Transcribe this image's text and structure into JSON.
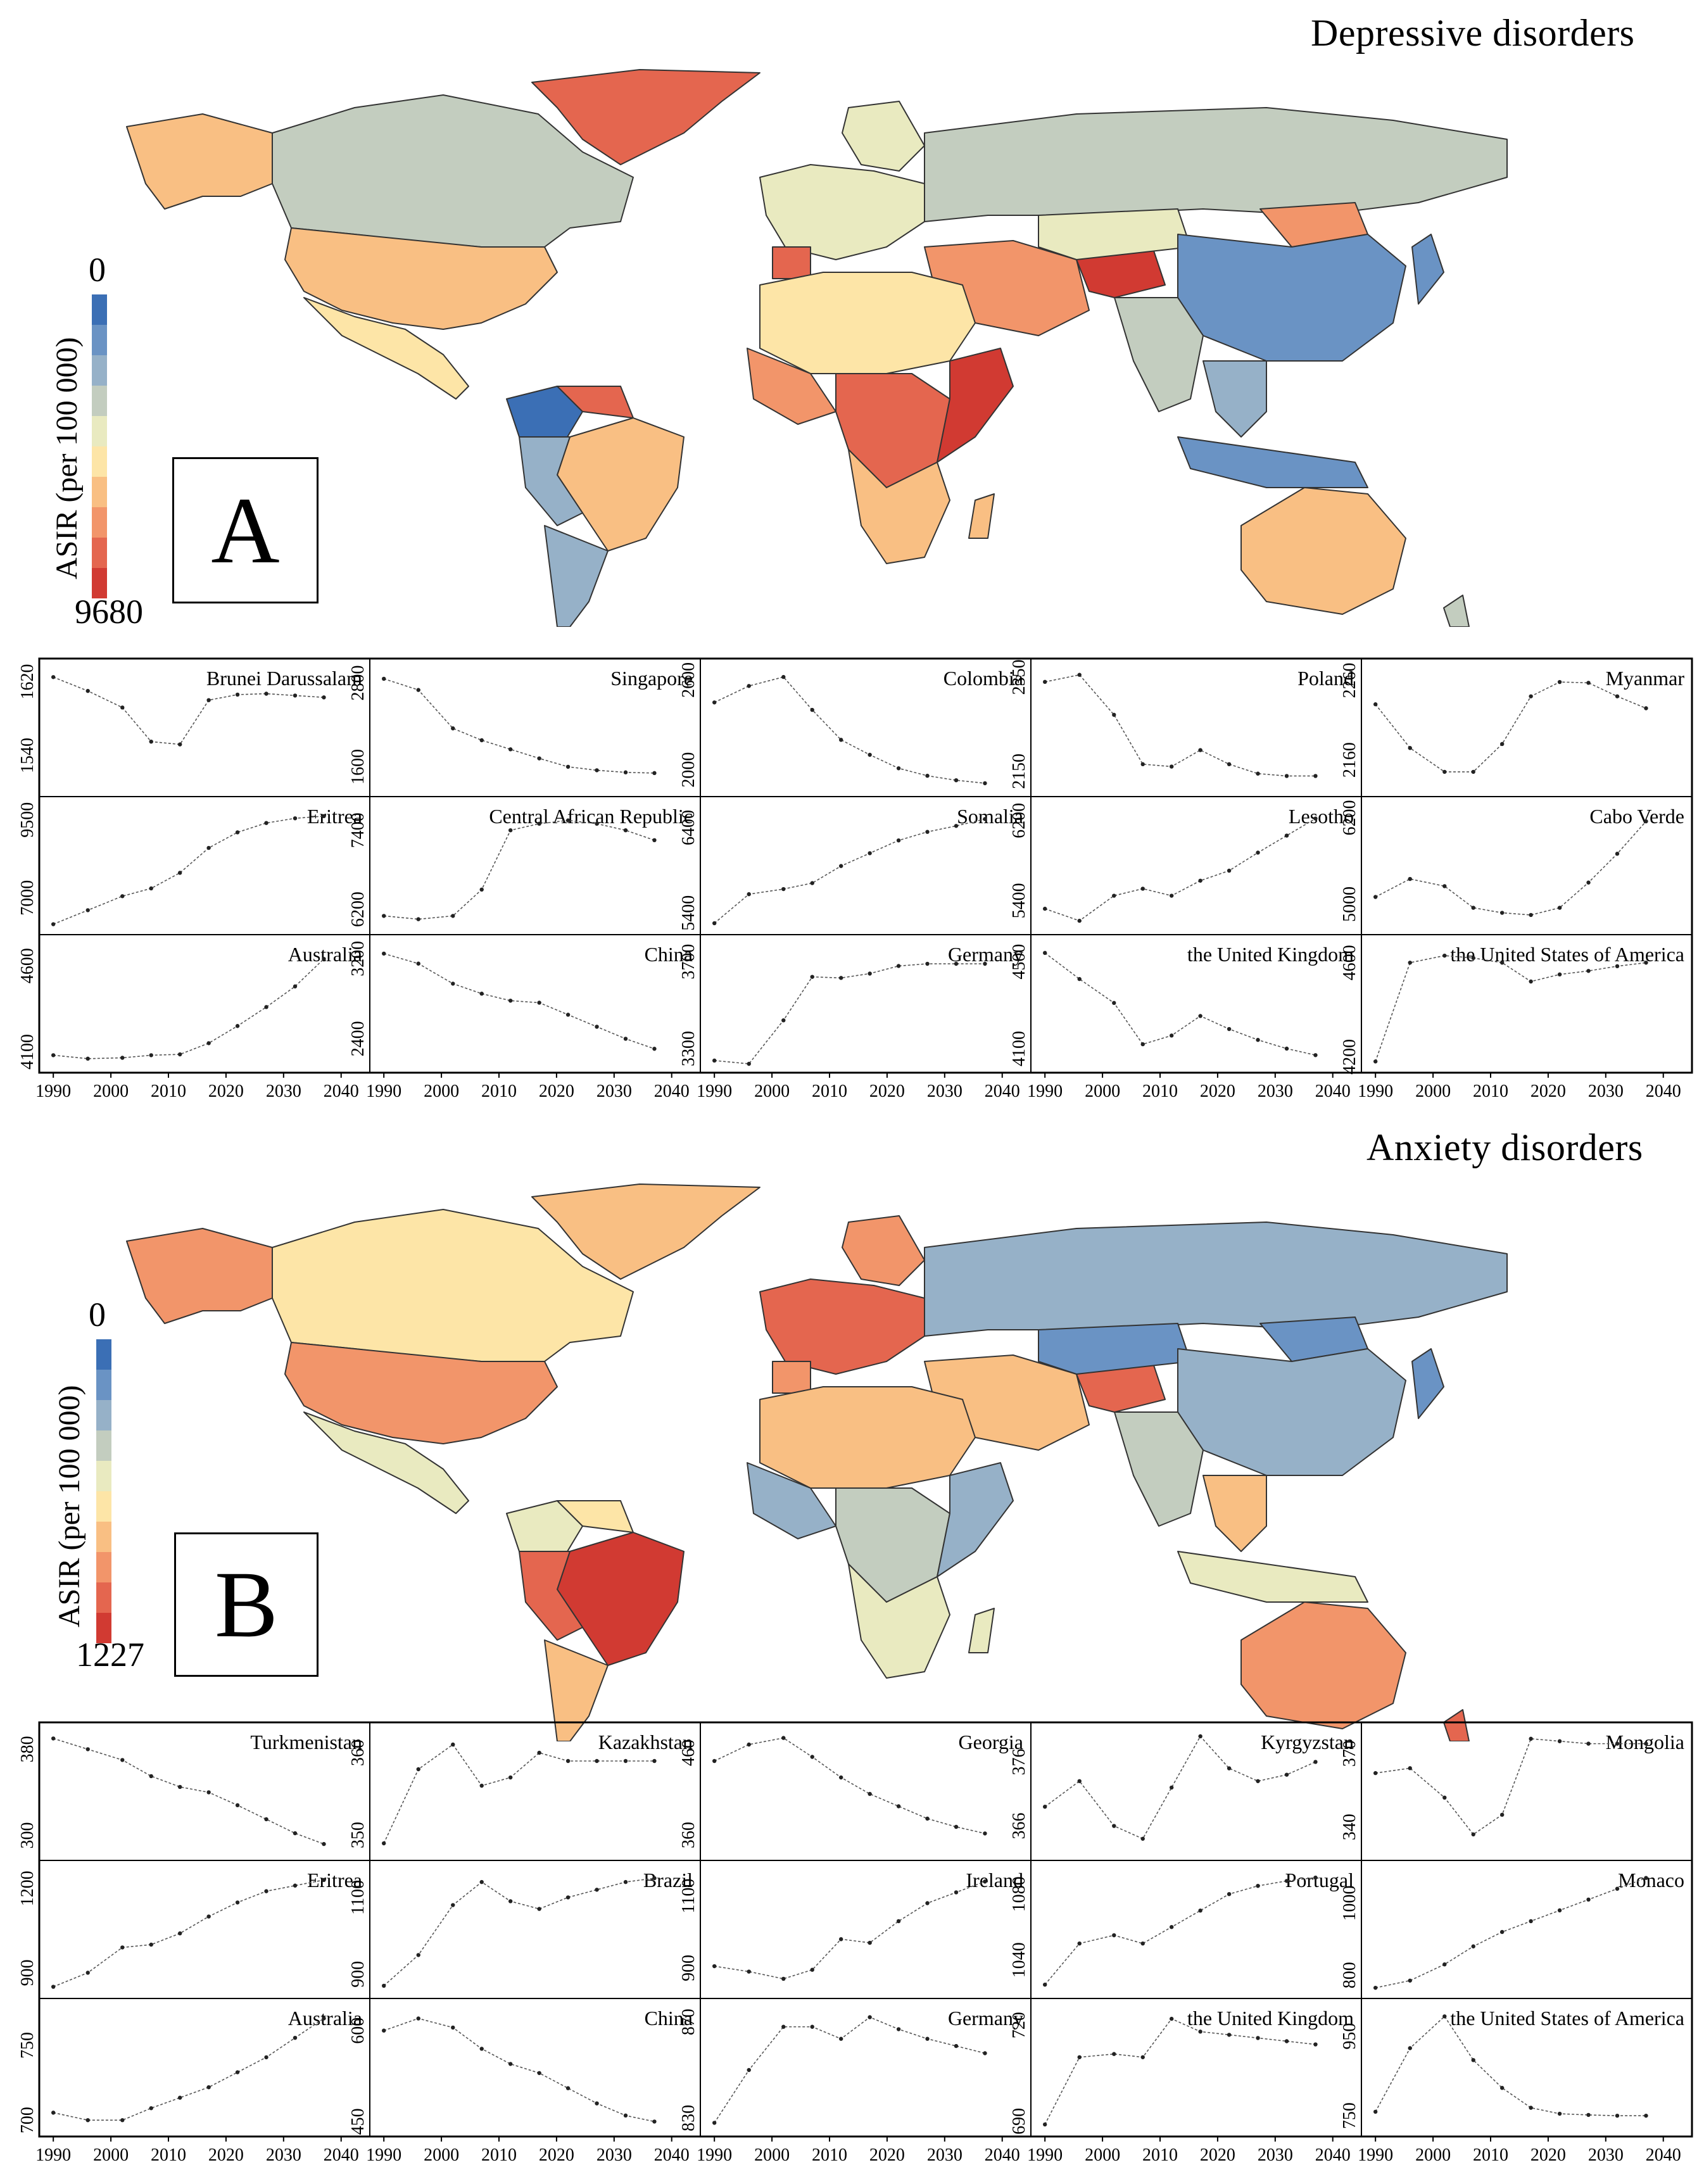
{
  "panels": [
    {
      "id": "A",
      "title": "Depressive disorders",
      "legend": {
        "min": "0",
        "max": "9680",
        "label": "ASIR (per 100 000)"
      },
      "small_multiples": [
        {
          "country": "Brunei Darussalam",
          "yticks": [
            "1620",
            "1540"
          ],
          "ylim": [
            1505,
            1630
          ],
          "values": [
            1625,
            1610,
            1592,
            1555,
            1552,
            1600,
            1606,
            1607,
            1605,
            1603
          ]
        },
        {
          "country": "Singapore",
          "yticks": [
            "2800",
            "1600"
          ],
          "ylim": [
            1300,
            2950
          ],
          "values": [
            2860,
            2700,
            2150,
            1980,
            1850,
            1720,
            1600,
            1550,
            1520,
            1510
          ]
        },
        {
          "country": "Colombia",
          "yticks": [
            "2600",
            "2000"
          ],
          "ylim": [
            1880,
            2650
          ],
          "values": [
            2450,
            2560,
            2620,
            2400,
            2200,
            2100,
            2010,
            1960,
            1930,
            1910
          ]
        },
        {
          "country": "Poland",
          "yticks": [
            "2350",
            "2150"
          ],
          "ylim": [
            2115,
            2360
          ],
          "values": [
            2340,
            2355,
            2270,
            2165,
            2160,
            2195,
            2165,
            2145,
            2140,
            2140
          ]
        },
        {
          "country": "Myanmar",
          "yticks": [
            "2260",
            "2160"
          ],
          "ylim": [
            2125,
            2270
          ],
          "values": [
            2230,
            2175,
            2145,
            2145,
            2180,
            2240,
            2258,
            2257,
            2240,
            2225
          ]
        },
        {
          "country": "Eritrea",
          "yticks": [
            "9500",
            "7000"
          ],
          "ylim": [
            6100,
            9800
          ],
          "values": [
            6150,
            6600,
            7050,
            7300,
            7800,
            8600,
            9100,
            9400,
            9550,
            9620
          ]
        },
        {
          "country": "Central African Republic",
          "yticks": [
            "7400",
            "6200"
          ],
          "ylim": [
            5950,
            7700
          ],
          "values": [
            6100,
            6050,
            6100,
            6500,
            7400,
            7500,
            7550,
            7500,
            7400,
            7250
          ]
        },
        {
          "country": "Somalia",
          "yticks": [
            "6400",
            "5400"
          ],
          "ylim": [
            5250,
            6600
          ],
          "values": [
            5280,
            5620,
            5680,
            5750,
            5950,
            6100,
            6250,
            6350,
            6420,
            6500
          ]
        },
        {
          "country": "Lesotho",
          "yticks": [
            "6200",
            "5400"
          ],
          "ylim": [
            5150,
            6300
          ],
          "values": [
            5320,
            5200,
            5450,
            5520,
            5450,
            5600,
            5700,
            5880,
            6050,
            6220
          ]
        },
        {
          "country": "Cabo Verde",
          "yticks": [
            "6200",
            "5000"
          ],
          "ylim": [
            4700,
            6300
          ],
          "values": [
            5100,
            5350,
            5250,
            4950,
            4880,
            4850,
            4950,
            5300,
            5700,
            6150
          ]
        },
        {
          "country": "Australia",
          "yticks": [
            "4600",
            "4100"
          ],
          "ylim": [
            4030,
            4700
          ],
          "values": [
            4080,
            4060,
            4065,
            4080,
            4085,
            4150,
            4250,
            4360,
            4480,
            4640
          ]
        },
        {
          "country": "China",
          "yticks": [
            "3200",
            "2400"
          ],
          "ylim": [
            2150,
            3300
          ],
          "values": [
            3250,
            3150,
            2950,
            2850,
            2780,
            2760,
            2640,
            2520,
            2400,
            2300
          ]
        },
        {
          "country": "Germany",
          "yticks": [
            "3700",
            "3300"
          ],
          "ylim": [
            3230,
            3760
          ],
          "values": [
            3245,
            3230,
            3430,
            3630,
            3625,
            3645,
            3680,
            3690,
            3690,
            3690
          ]
        },
        {
          "country": "the United Kingdom",
          "yticks": [
            "4500",
            "4100"
          ],
          "ylim": [
            4030,
            4560
          ],
          "values": [
            4540,
            4420,
            4310,
            4120,
            4160,
            4250,
            4190,
            4140,
            4100,
            4070
          ]
        },
        {
          "country": "the United States of America",
          "yticks": [
            "4600",
            "4200"
          ],
          "ylim": [
            4170,
            4660
          ],
          "values": [
            4180,
            4600,
            4630,
            4620,
            4600,
            4520,
            4550,
            4565,
            4585,
            4600
          ]
        }
      ]
    },
    {
      "id": "B",
      "title": "Anxiety disorders",
      "legend": {
        "min": "0",
        "max": "1227",
        "label": "ASIR (per 100 000)"
      },
      "small_multiples": [
        {
          "country": "Turkmenistan",
          "yticks": [
            "380",
            "300"
          ],
          "ylim": [
            285,
            392
          ],
          "values": [
            390,
            380,
            370,
            355,
            345,
            340,
            328,
            315,
            302,
            292
          ]
        },
        {
          "country": "Kazakhstan",
          "yticks": [
            "360",
            "350"
          ],
          "ylim": [
            348,
            362
          ],
          "values": [
            349,
            358,
            361,
            356,
            357,
            360,
            359,
            359,
            359,
            359
          ]
        },
        {
          "country": "Georgia",
          "yticks": [
            "460",
            "360"
          ],
          "ylim": [
            340,
            480
          ],
          "values": [
            450,
            470,
            478,
            455,
            430,
            410,
            395,
            380,
            370,
            362
          ]
        },
        {
          "country": "Kyrgyzstan",
          "yticks": [
            "376",
            "366"
          ],
          "ylim": [
            362,
            380
          ],
          "values": [
            369,
            373,
            366,
            364,
            372,
            380,
            375,
            373,
            374,
            376
          ]
        },
        {
          "country": "Mongolia",
          "yticks": [
            "370",
            "340"
          ],
          "ylim": [
            330,
            377
          ],
          "values": [
            362,
            364,
            352,
            337,
            345,
            376,
            375,
            374,
            374,
            374
          ]
        },
        {
          "country": "Eritrea",
          "yticks": [
            "1200",
            "900"
          ],
          "ylim": [
            840,
            1250
          ],
          "values": [
            850,
            900,
            990,
            1000,
            1040,
            1100,
            1150,
            1190,
            1210,
            1230
          ]
        },
        {
          "country": "Brazil",
          "yticks": [
            "1100",
            "900"
          ],
          "ylim": [
            860,
            1160
          ],
          "values": [
            870,
            950,
            1080,
            1140,
            1090,
            1070,
            1100,
            1120,
            1140,
            1150
          ]
        },
        {
          "country": "Ireland",
          "yticks": [
            "1100",
            "900"
          ],
          "ylim": [
            840,
            1160
          ],
          "values": [
            905,
            890,
            870,
            895,
            980,
            970,
            1030,
            1080,
            1110,
            1140
          ]
        },
        {
          "country": "Portugal",
          "yticks": [
            "1080",
            "1040"
          ],
          "ylim": [
            1022,
            1092
          ],
          "values": [
            1025,
            1050,
            1055,
            1050,
            1060,
            1070,
            1080,
            1085,
            1088,
            1090
          ]
        },
        {
          "country": "Monaco",
          "yticks": [
            "1000",
            "800"
          ],
          "ylim": [
            760,
            1080
          ],
          "values": [
            765,
            785,
            830,
            880,
            920,
            950,
            980,
            1010,
            1040,
            1070
          ]
        },
        {
          "country": "Australia",
          "yticks": [
            "750",
            "700"
          ],
          "ylim": [
            695,
            772
          ],
          "values": [
            705,
            700,
            700,
            708,
            715,
            722,
            732,
            742,
            755,
            768
          ]
        },
        {
          "country": "China",
          "yticks": [
            "600",
            "450"
          ],
          "ylim": [
            440,
            630
          ],
          "values": [
            600,
            620,
            605,
            570,
            545,
            530,
            505,
            480,
            460,
            450
          ]
        },
        {
          "country": "Germany",
          "yticks": [
            "870",
            "830"
          ],
          "ylim": [
            826,
            874
          ],
          "values": [
            828,
            850,
            868,
            868,
            863,
            872,
            867,
            863,
            860,
            857
          ]
        },
        {
          "country": "the United Kingdom",
          "yticks": [
            "720",
            "690"
          ],
          "ylim": [
            688,
            724
          ],
          "values": [
            689,
            710,
            711,
            710,
            722,
            718,
            717,
            716,
            715,
            714
          ]
        },
        {
          "country": "the United States of America",
          "yticks": [
            "950",
            "750"
          ],
          "ylim": [
            720,
            1010
          ],
          "values": [
            760,
            920,
            1000,
            890,
            820,
            770,
            755,
            752,
            750,
            750
          ]
        }
      ]
    }
  ],
  "xticks": [
    "1990",
    "2000",
    "2010",
    "2020",
    "2030",
    "2040"
  ],
  "xyears": [
    1990,
    1996,
    2002,
    2007,
    2012,
    2017,
    2022,
    2027,
    2032,
    2037
  ],
  "colors": {
    "legend_scale": [
      "#3b6fb5",
      "#6a93c4",
      "#96b1c8",
      "#c3cdbf",
      "#e9eac0",
      "#fde5a7",
      "#f9bf83",
      "#f2956a",
      "#e4664f",
      "#d13a32"
    ]
  }
}
